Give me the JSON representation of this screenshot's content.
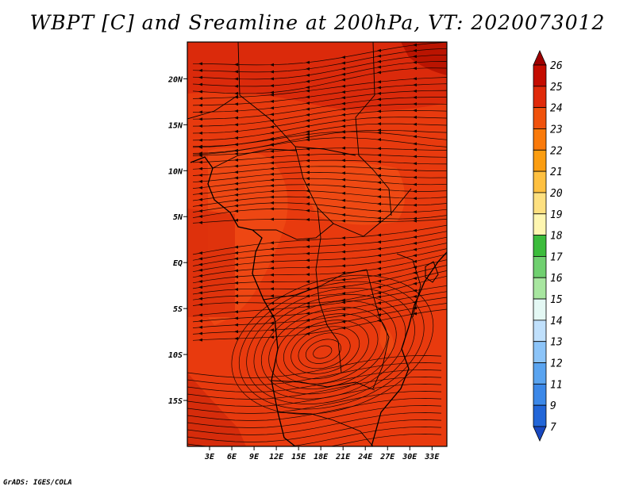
{
  "title": "WBPT [C] and Sreamline at 200hPa, VT: 2020073012",
  "credit": "GrADS: IGES/COLA",
  "map": {
    "lon_range": [
      0,
      35
    ],
    "lat_range": [
      -20,
      24
    ],
    "lon_ticks": [
      {
        "value": 3,
        "label": "3E"
      },
      {
        "value": 6,
        "label": "6E"
      },
      {
        "value": 9,
        "label": "9E"
      },
      {
        "value": 12,
        "label": "12E"
      },
      {
        "value": 15,
        "label": "15E"
      },
      {
        "value": 18,
        "label": "18E"
      },
      {
        "value": 21,
        "label": "21E"
      },
      {
        "value": 24,
        "label": "24E"
      },
      {
        "value": 27,
        "label": "27E"
      },
      {
        "value": 30,
        "label": "30E"
      },
      {
        "value": 33,
        "label": "33E"
      }
    ],
    "lat_ticks": [
      {
        "value": 20,
        "label": "20N"
      },
      {
        "value": 15,
        "label": "15N"
      },
      {
        "value": 10,
        "label": "10N"
      },
      {
        "value": 5,
        "label": "5N"
      },
      {
        "value": 0,
        "label": "EQ"
      },
      {
        "value": -5,
        "label": "5S"
      },
      {
        "value": -10,
        "label": "10S"
      },
      {
        "value": -15,
        "label": "15S"
      }
    ],
    "background_color": "#e83a0e"
  },
  "colorbar": {
    "labels": [
      "26",
      "25",
      "24",
      "23",
      "22",
      "21",
      "20",
      "19",
      "18",
      "17",
      "16",
      "15",
      "14",
      "13",
      "12",
      "11",
      "9",
      "7"
    ],
    "colors": [
      "#9e0000",
      "#c40c00",
      "#e02a0a",
      "#f0520c",
      "#fa7a0a",
      "#fb9d10",
      "#fec040",
      "#fde080",
      "#fef6b0",
      "#3cbc3c",
      "#70d070",
      "#a8e6a0",
      "#e4f8f4",
      "#c0e0fc",
      "#8cc4f8",
      "#5aa4f0",
      "#3c88e8",
      "#2266d8",
      "#1848c0"
    ]
  }
}
